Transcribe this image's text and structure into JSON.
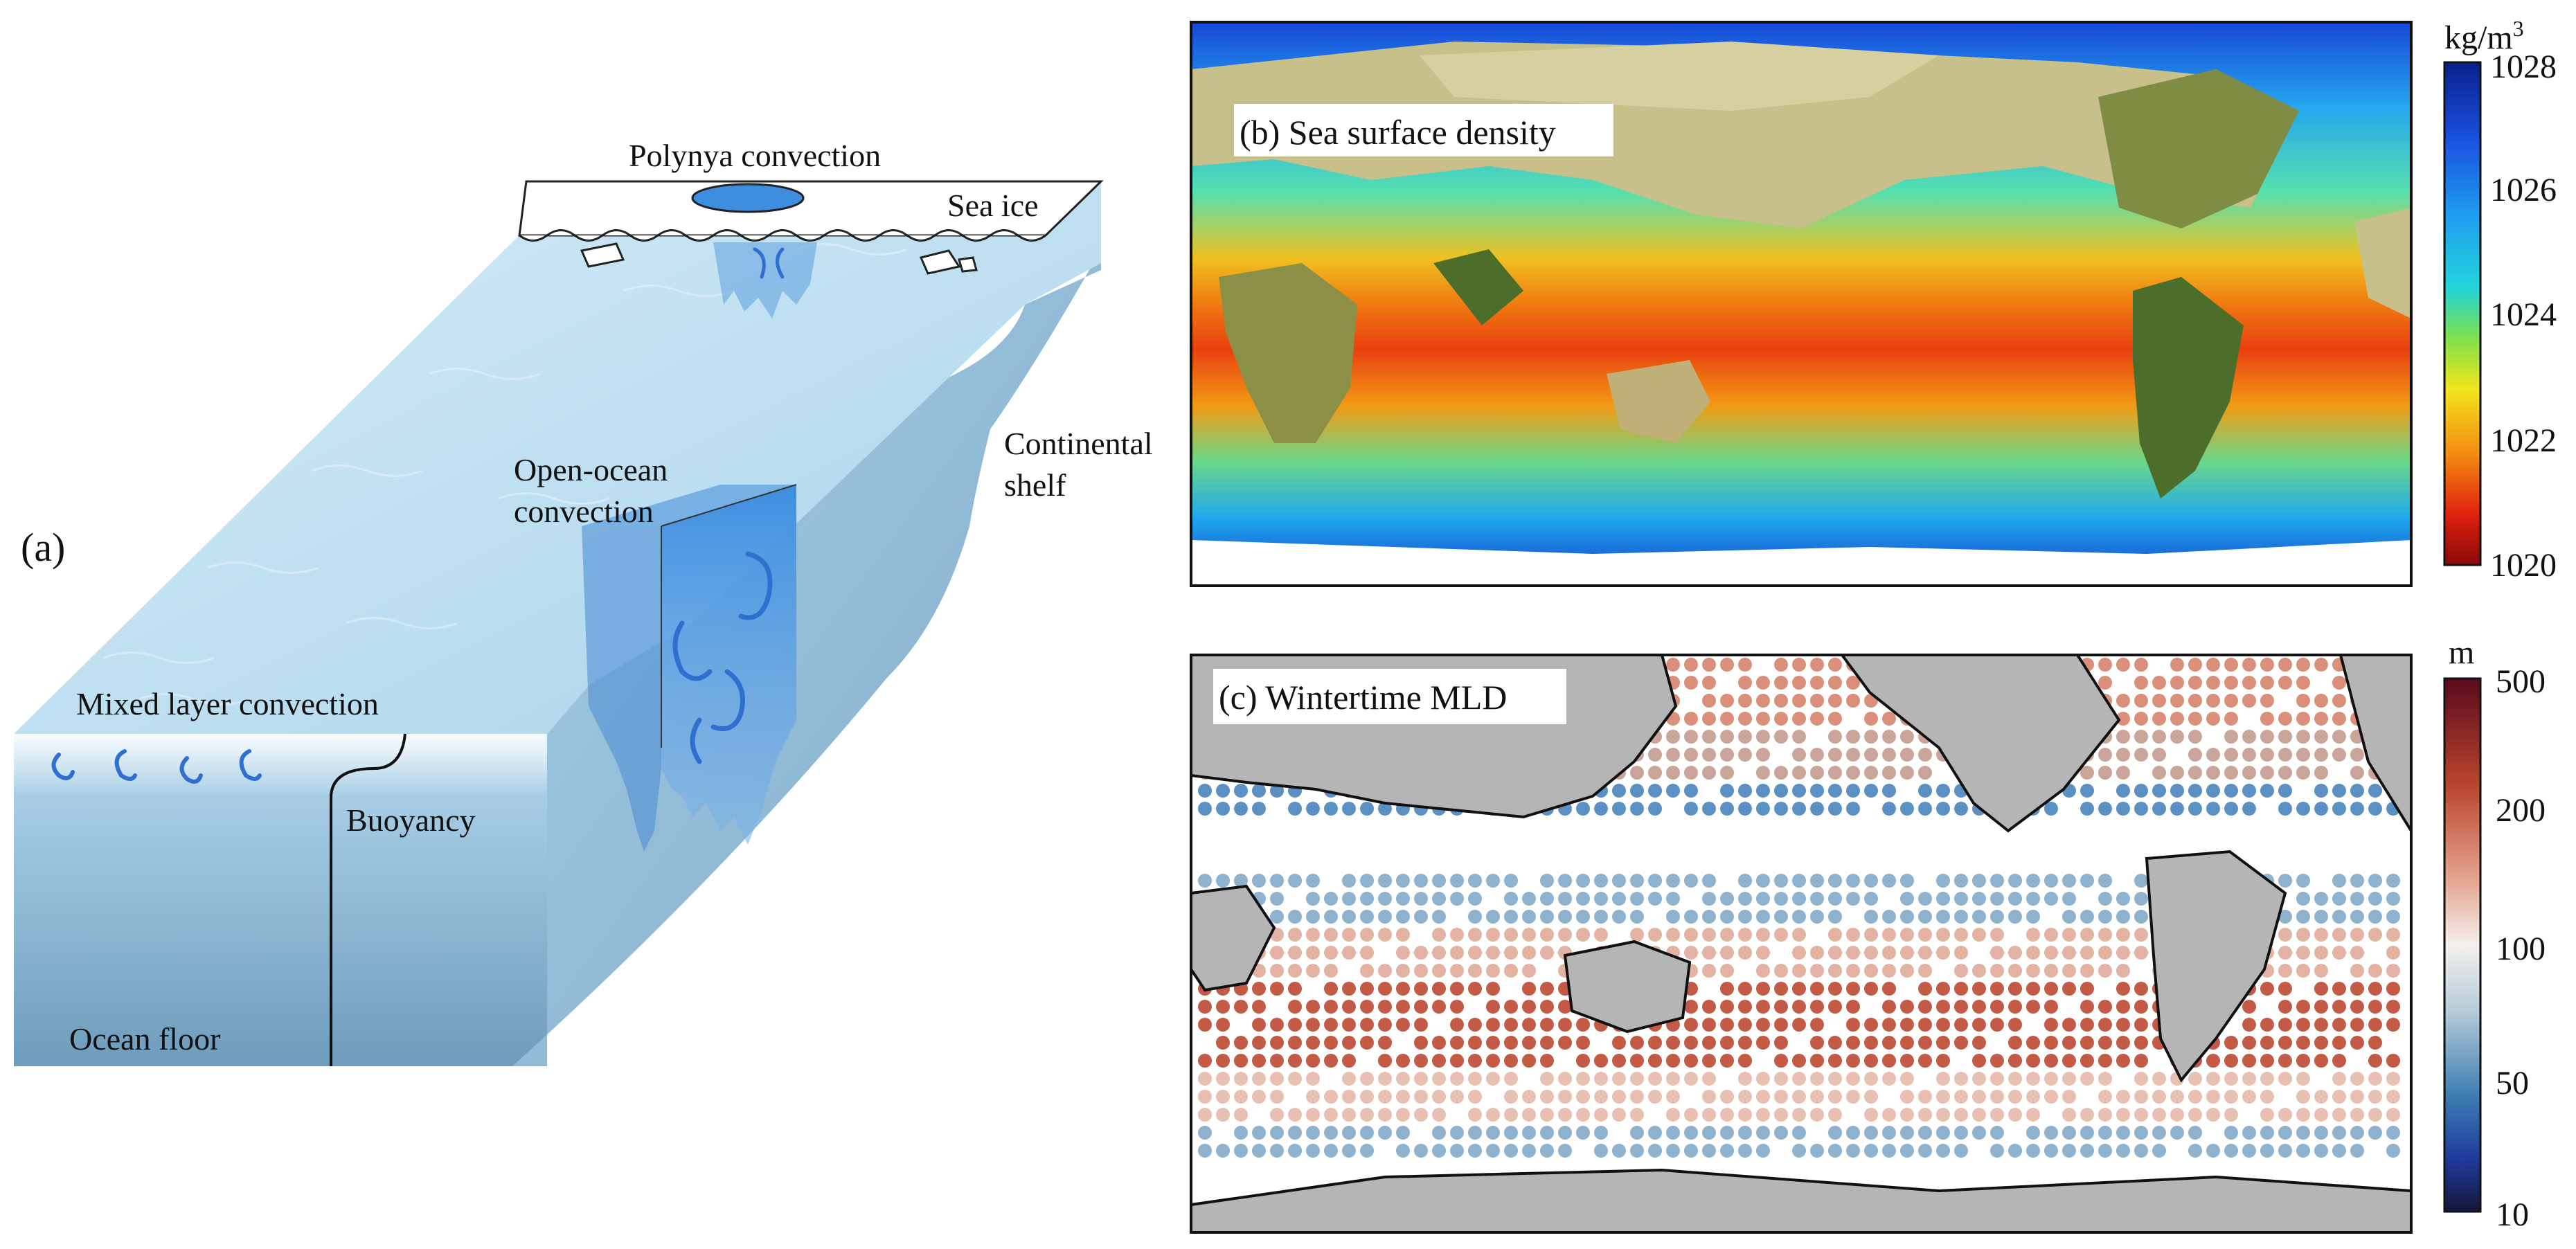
{
  "panel_a": {
    "label": "(a)",
    "polynya": "Polynya convection",
    "sea_ice": "Sea ice",
    "continental_1": "Continental",
    "continental_2": "shelf",
    "open_ocean_1": "Open-ocean",
    "open_ocean_2": "convection",
    "mixed_layer": "Mixed layer convection",
    "buoyancy": "Buoyancy",
    "ocean_floor": "Ocean floor"
  },
  "panel_b": {
    "title": "(b) Sea surface density",
    "unit_base": "kg/m",
    "unit_sup": "3",
    "ticks": [
      "1028",
      "1026",
      "1024",
      "1022",
      "1020"
    ]
  },
  "panel_c": {
    "title": "(c) Wintertime MLD",
    "unit": "m",
    "ticks": [
      "500",
      "200",
      "100",
      "50",
      "10"
    ]
  },
  "colors": {
    "ocean_light": "#b9dcef",
    "ocean_mid": "#86bde0",
    "ocean_dark": "#5f8fb0",
    "convection": "#3f8fdc",
    "land_b": "#8a8f47",
    "land_c": "#b5b5b5"
  }
}
